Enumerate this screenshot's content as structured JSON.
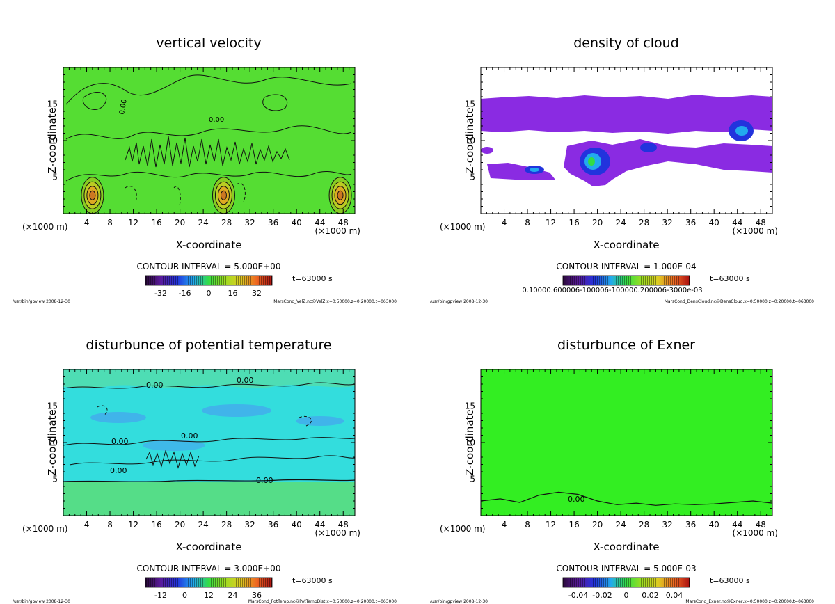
{
  "colors": {
    "velocity_bg": "#55dd33",
    "cloud_purple": "#8a2be2",
    "temp_bg": "#33dddd",
    "exner_bg": "#33ee22"
  },
  "chart_data": [
    {
      "type": "heatmap",
      "id": "velz",
      "title": "vertical velocity",
      "xlabel": "X-coordinate",
      "ylabel": "Z-coordinate",
      "x_unit_left": "(×1000 m)",
      "x_unit_right": "(×1000 m)",
      "xlim": [
        0,
        50
      ],
      "ylim": [
        0,
        20
      ],
      "xticks": [
        4,
        8,
        12,
        16,
        20,
        24,
        28,
        32,
        36,
        40,
        44,
        48
      ],
      "yticks": [
        5,
        10,
        15
      ],
      "contour_interval": "CONTOUR INTERVAL = 5.000E+00",
      "time_label": "t=63000 s",
      "colorbar_ticks": [
        "-32",
        "-16",
        "0",
        "16",
        "32"
      ],
      "contour_labels": [
        "0.00"
      ],
      "updraft_centers_x": [
        5,
        27.5,
        47.5
      ],
      "footer_left": "/usr/bin/gpview  2008-12-30",
      "footer_right": "MarsCond_VelZ.nc@VelZ,x=0:50000,z=0:20000,t=063000"
    },
    {
      "type": "heatmap",
      "id": "cloud",
      "title": "density of cloud",
      "xlabel": "X-coordinate",
      "ylabel": "Z-coordinate",
      "x_unit_left": "(×1000 m)",
      "x_unit_right": "(×1000 m)",
      "xlim": [
        0,
        50
      ],
      "ylim": [
        0,
        20
      ],
      "xticks": [
        4,
        8,
        12,
        16,
        20,
        24,
        28,
        32,
        36,
        40,
        44,
        48
      ],
      "yticks": [
        5,
        10,
        15
      ],
      "contour_interval": "CONTOUR INTERVAL = 1.000E-04",
      "time_label": "t=63000 s",
      "colorbar_label": "0.10000.600006-100006-100000.200006-3000e-03",
      "cloud_layers": [
        {
          "x": [
            0,
            50
          ],
          "z": [
            10.8,
            15.7
          ]
        },
        {
          "x": [
            0.5,
            13
          ],
          "z": [
            4.6,
            6.8
          ]
        },
        {
          "x": [
            13,
            50
          ],
          "z": [
            4.3,
            9.6
          ]
        }
      ],
      "footer_left": "/usr/bin/gpview  2008-12-30",
      "footer_right": "MarsCond_DensCloud.nc@DensCloud,x=0:50000,z=0:20000,t=063000"
    },
    {
      "type": "heatmap",
      "id": "ptemp",
      "title": "disturbunce of potential temperature",
      "xlabel": "X-coordinate",
      "ylabel": "Z-coordinate",
      "x_unit_left": "(×1000 m)",
      "x_unit_right": "(×1000 m)",
      "xlim": [
        0,
        50
      ],
      "ylim": [
        0,
        20
      ],
      "xticks": [
        4,
        8,
        12,
        16,
        20,
        24,
        28,
        32,
        36,
        40,
        44,
        48
      ],
      "yticks": [
        5,
        10,
        15
      ],
      "contour_interval": "CONTOUR INTERVAL = 3.000E+00",
      "time_label": "t=63000 s",
      "colorbar_ticks": [
        "-12",
        "0",
        "12",
        "24",
        "36"
      ],
      "contour_labels": [
        "0.00",
        "0.00",
        "0.00",
        "0.00",
        "0.00",
        "0.00"
      ],
      "footer_left": "/usr/bin/gpview  2008-12-30",
      "footer_right": "MarsCond_PotTemp.nc@PotTempDist,x=0:50000,z=0:20000,t=063000"
    },
    {
      "type": "heatmap",
      "id": "exner",
      "title": "disturbunce of Exner",
      "xlabel": "X-coordinate",
      "ylabel": "Z-coordinate",
      "x_unit_left": "(×1000 m)",
      "x_unit_right": "(×1000 m)",
      "xlim": [
        0,
        50
      ],
      "ylim": [
        0,
        20
      ],
      "xticks": [
        4,
        8,
        12,
        16,
        20,
        24,
        28,
        32,
        36,
        40,
        44,
        48
      ],
      "yticks": [
        5,
        10,
        15
      ],
      "contour_interval": "CONTOUR INTERVAL = 5.000E-03",
      "time_label": "t=63000 s",
      "colorbar_ticks": [
        "-0.04",
        "-0.02",
        "0",
        "0.02",
        "0.04"
      ],
      "contour_labels": [
        "0.00"
      ],
      "zero_contour_z": [
        2.0,
        2.3,
        1.8,
        2.8,
        3.2,
        2.9,
        2.0,
        1.5,
        1.7,
        1.4,
        1.6,
        1.5,
        1.6,
        1.8,
        2.0,
        1.7
      ],
      "footer_left": "/usr/bin/gpview  2008-12-30",
      "footer_right": "MarsCond_Exner.nc@Exner,x=0:50000,z=0:20000,t=063000"
    }
  ]
}
